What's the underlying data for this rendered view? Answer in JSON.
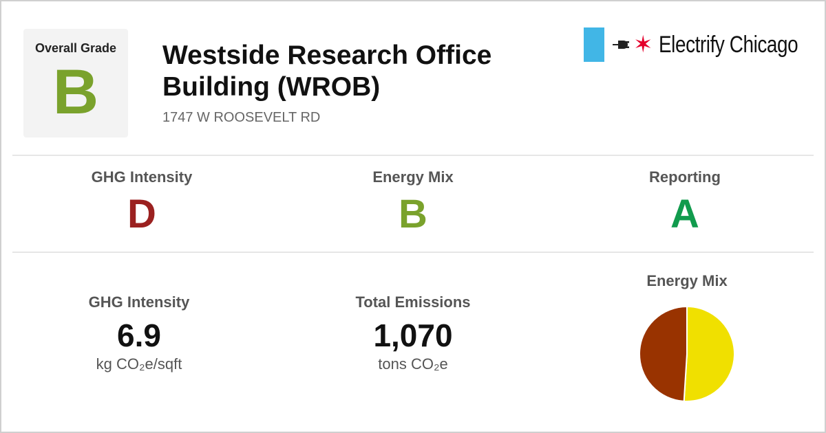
{
  "overall": {
    "label": "Overall Grade",
    "grade": "B",
    "color": "#7aa22c"
  },
  "building": {
    "name": "Westside Research Office Building (WROB)",
    "address": "1747 W ROOSEVELT RD"
  },
  "logo": {
    "brand": "Electrify Chicago",
    "flag_color": "#41b6e6",
    "star_color": "#e4002b",
    "star_icon": "six-pointed-star-icon",
    "plug_icon": "plug-icon"
  },
  "grades": [
    {
      "label": "GHG Intensity",
      "grade": "D",
      "color": "#9b2120"
    },
    {
      "label": "Energy Mix",
      "grade": "B",
      "color": "#7aa22c"
    },
    {
      "label": "Reporting",
      "grade": "A",
      "color": "#119b4d"
    }
  ],
  "metrics": {
    "ghg_intensity": {
      "label": "GHG Intensity",
      "value": "6.9",
      "unit": "kg CO₂e/sqft"
    },
    "total_emissions": {
      "label": "Total Emissions",
      "value": "1,070",
      "unit": "tons CO₂e"
    }
  },
  "chart_data": {
    "type": "pie",
    "title": "Energy Mix",
    "slices": [
      {
        "value": 51,
        "color": "#f0e000"
      },
      {
        "value": 49,
        "color": "#993300"
      }
    ]
  }
}
